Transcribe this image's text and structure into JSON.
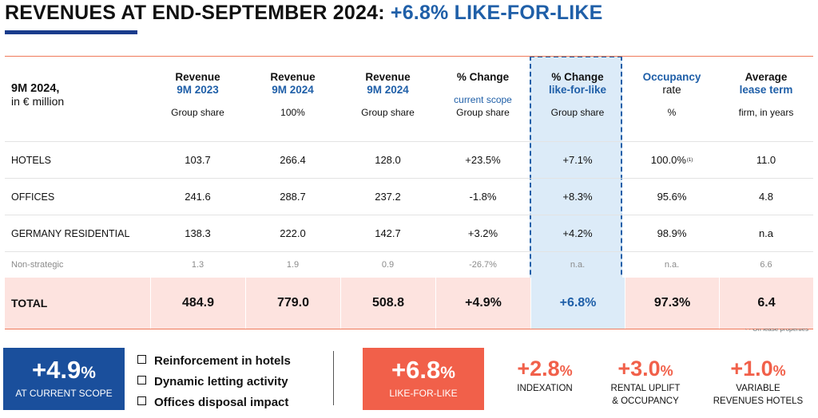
{
  "title": {
    "main": "REVENUES AT END-SEPTEMBER 2024: ",
    "accent": "+6.8% LIKE-FOR-LIKE"
  },
  "header": {
    "c0": {
      "line1": "9M 2024,",
      "line2": "in € million"
    },
    "c1": {
      "line1": "Revenue",
      "line2": "9M 2023",
      "sub": "Group share"
    },
    "c2": {
      "line1": "Revenue",
      "line2": "9M 2024",
      "sub": "100%"
    },
    "c3": {
      "line1": "Revenue",
      "line2": "9M 2024",
      "sub": "Group share"
    },
    "c4": {
      "line1": "% Change",
      "line2": "current scope",
      "sub": "Group share"
    },
    "c5": {
      "line1": "% Change",
      "line2": "like-for-like",
      "sub": "Group share"
    },
    "c6": {
      "line1": "Occupancy",
      "line2": "rate",
      "sub": "%"
    },
    "c7": {
      "line1": "Average",
      "line2": "lease term",
      "sub": "firm, in years"
    }
  },
  "rows": [
    {
      "label": "HOTELS",
      "v1": "103.7",
      "v2": "266.4",
      "v3": "128.0",
      "v4": "+23.5%",
      "v5": "+7.1%",
      "v6": "100.0%",
      "v6_note": "(1)",
      "v7": "11.0"
    },
    {
      "label": "OFFICES",
      "v1": "241.6",
      "v2": "288.7",
      "v3": "237.2",
      "v4": "-1.8%",
      "v5": "+8.3%",
      "v6": "95.6%",
      "v7": "4.8"
    },
    {
      "label": "GERMANY RESIDENTIAL",
      "v1": "138.3",
      "v2": "222.0",
      "v3": "142.7",
      "v4": "+3.2%",
      "v5": "+4.2%",
      "v6": "98.9%",
      "v7": "n.a"
    },
    {
      "label": "Non-strategic",
      "v1": "1.3",
      "v2": "1.9",
      "v3": "0.9",
      "v4": "-26.7%",
      "v5": "n.a.",
      "v6": "n.a.",
      "v7": "6.6"
    }
  ],
  "total": {
    "label": "TOTAL",
    "v1": "484.9",
    "v2": "779.0",
    "v3": "508.8",
    "v4": "+4.9%",
    "v5": "+6.8%",
    "v6": "97.3%",
    "v7": "6.4"
  },
  "footnote": {
    "mark": "(1)",
    "text": " On lease properties"
  },
  "kpi_current": {
    "value": "+4.9",
    "unit": "%",
    "label": "AT CURRENT SCOPE"
  },
  "bullets": [
    "Reinforcement in hotels",
    "Dynamic letting activity",
    "Offices disposal impact"
  ],
  "kpi_lfl": {
    "value": "+6.8",
    "unit": "%",
    "label": "LIKE-FOR-LIKE"
  },
  "drivers": [
    {
      "value": "+2.8",
      "unit": "%",
      "line1": "INDEXATION",
      "line2": ""
    },
    {
      "value": "+3.0",
      "unit": "%",
      "line1": "RENTAL UPLIFT",
      "line2": "& OCCUPANCY"
    },
    {
      "value": "+1.0",
      "unit": "%",
      "line1": "VARIABLE",
      "line2": "REVENUES HOTELS"
    }
  ],
  "colors": {
    "blue": "#1f5fa8",
    "navy": "#1a4f9c",
    "coral": "#f1604a",
    "total_bg": "#fde3df",
    "highlight_bg": "#dcebf8"
  }
}
